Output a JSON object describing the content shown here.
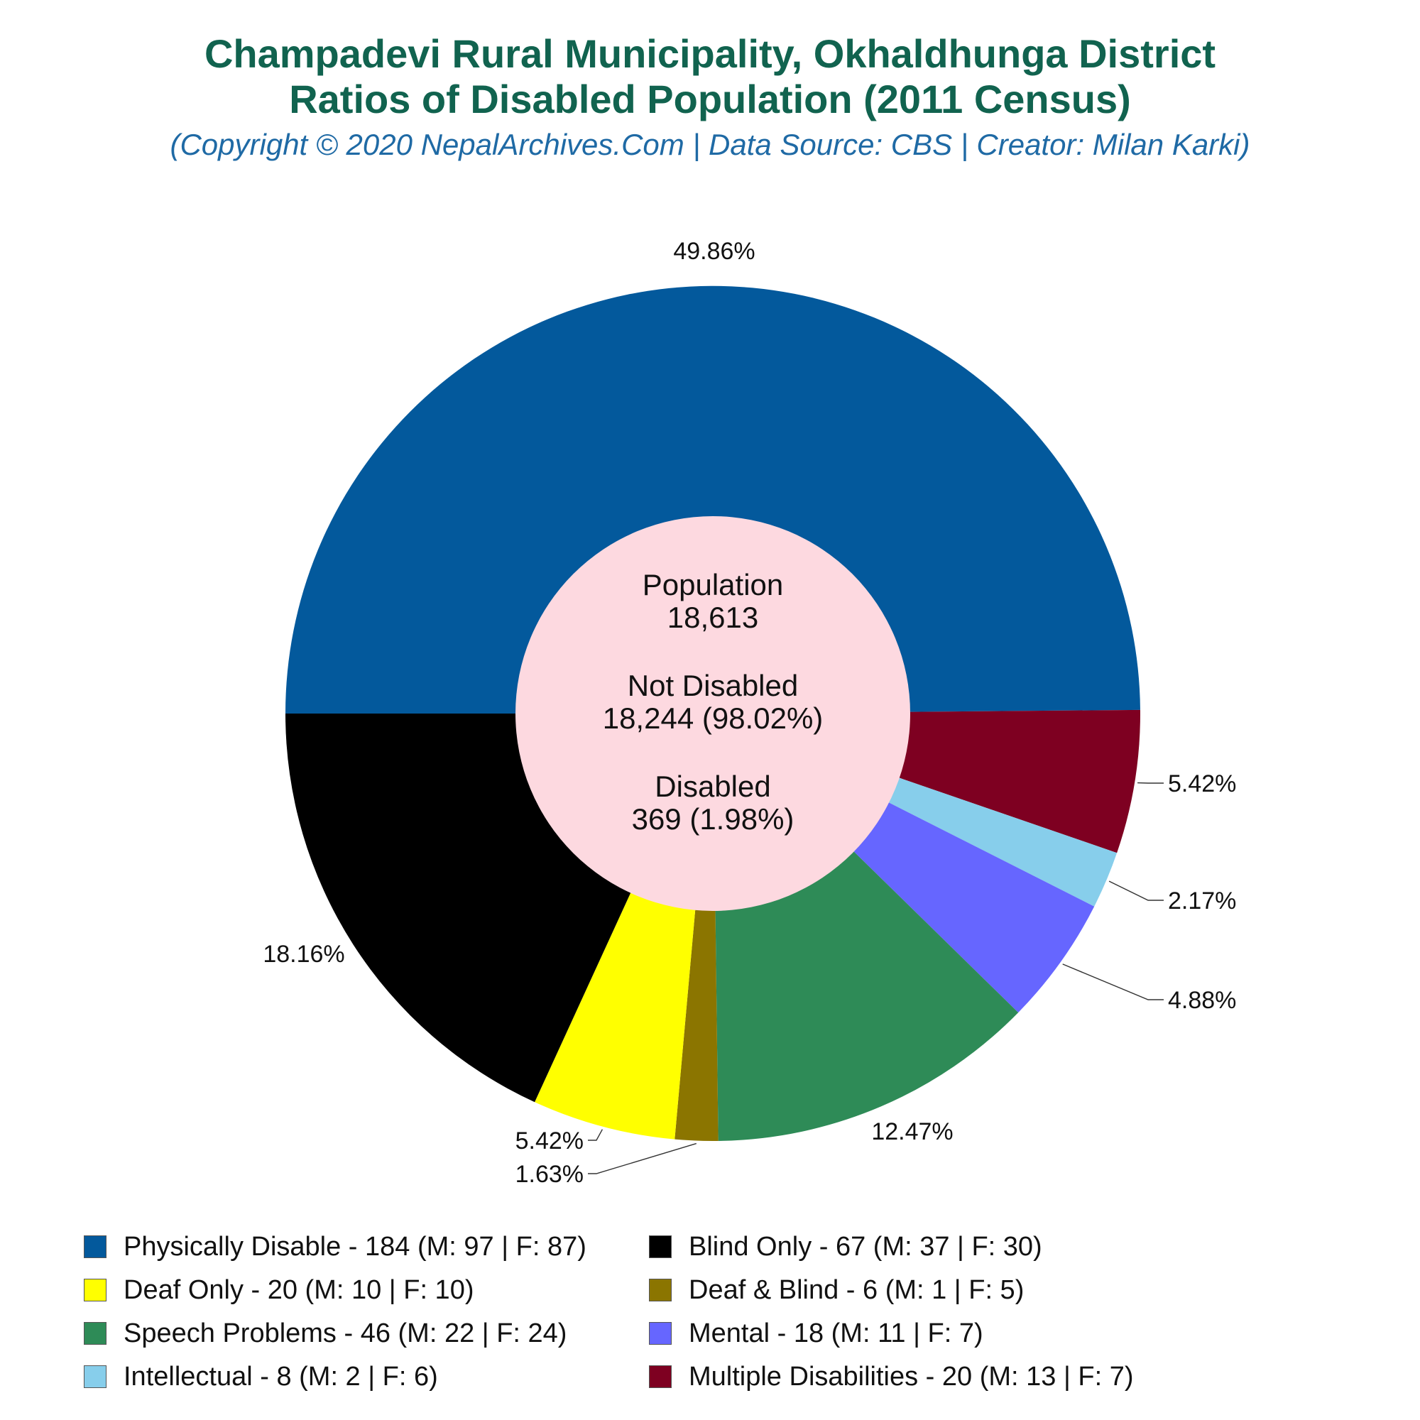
{
  "title_line1": "Champadevi Rural Municipality, Okhaldhunga District",
  "title_line2": "Ratios of Disabled Population (2011 Census)",
  "subtitle": "(Copyright © 2020 NepalArchives.Com | Data Source: CBS | Creator: Milan Karki)",
  "center": {
    "population_label": "Population",
    "population_value": "18,613",
    "not_disabled_label": "Not Disabled",
    "not_disabled_value": "18,244 (98.02%)",
    "disabled_label": "Disabled",
    "disabled_value": "369 (1.98%)",
    "background_color": "#fdd9e0"
  },
  "chart_data": {
    "type": "pie",
    "variant": "donut",
    "start": "left (9 o'clock), clockwise",
    "slices": [
      {
        "label": "Physically Disable - 184 (M: 97 | F: 87)",
        "value": 184,
        "percent": "49.86%",
        "color": "#03599c"
      },
      {
        "label": "Multiple Disabilities - 20 (M: 13 | F: 7)",
        "value": 20,
        "percent": "5.42%",
        "color": "#7e0021"
      },
      {
        "label": "Intellectual - 8 (M: 2 | F: 6)",
        "value": 8,
        "percent": "2.17%",
        "color": "#87ceeb"
      },
      {
        "label": "Mental - 18 (M: 11 | F: 7)",
        "value": 18,
        "percent": "4.88%",
        "color": "#6666ff"
      },
      {
        "label": "Speech Problems - 46 (M: 22 | F: 24)",
        "value": 46,
        "percent": "12.47%",
        "color": "#2e8b57"
      },
      {
        "label": "Deaf & Blind - 6 (M: 1 | F: 5)",
        "value": 6,
        "percent": "1.63%",
        "color": "#8b7500"
      },
      {
        "label": "Deaf Only - 20 (M: 10 | F: 10)",
        "value": 20,
        "percent": "5.42%",
        "color": "#ffff00"
      },
      {
        "label": "Blind Only - 67 (M: 37 | F: 30)",
        "value": 67,
        "percent": "18.16%",
        "color": "#000000"
      }
    ],
    "legend_order": [
      "Physically Disable - 184 (M: 97 | F: 87)",
      "Blind Only - 67 (M: 37 | F: 30)",
      "Deaf Only - 20 (M: 10 | F: 10)",
      "Deaf & Blind - 6 (M: 1 | F: 5)",
      "Speech Problems - 46 (M: 22 | F: 24)",
      "Mental - 18 (M: 11 | F: 7)",
      "Intellectual - 8 (M: 2 | F: 6)",
      "Multiple Disabilities - 20 (M: 13 | F: 7)"
    ],
    "legend_placement": "bottom"
  }
}
